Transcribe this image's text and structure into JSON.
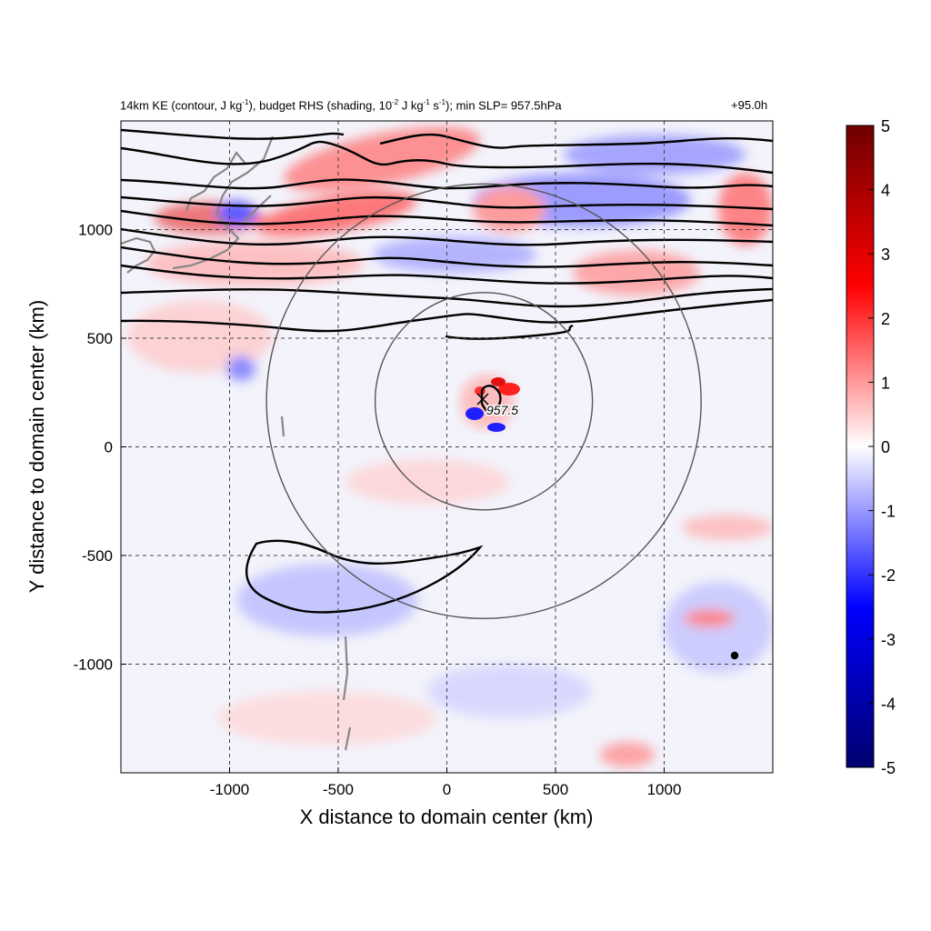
{
  "chart_data": {
    "type": "heatmap",
    "title_parts": {
      "a": "14km KE (contour, J kg",
      "a_sup": "-1",
      "b": "), budget RHS (shading, 10",
      "b_sup": "-2",
      "c": " J kg",
      "c_sup": "-1",
      "d": " s",
      "d_sup": "-1",
      "e": "); min SLP= 957.5hPa"
    },
    "time_label": "+95.0h",
    "xlabel": "X distance to domain center (km)",
    "ylabel": "Y distance to domain center (km)",
    "xlim": [
      -1500,
      1500
    ],
    "ylim": [
      -1500,
      1500
    ],
    "xticks": [
      -1000,
      -500,
      0,
      500,
      1000
    ],
    "yticks": [
      -1000,
      -500,
      0,
      500,
      1000
    ],
    "grid": "dashed",
    "colorbar": {
      "range": [
        -5,
        5
      ],
      "ticks": [
        5,
        4,
        3,
        2,
        1,
        0,
        -1,
        -2,
        -3,
        -4,
        -5
      ],
      "colors": [
        "#00006e",
        "#0000ff",
        "#ffffff",
        "#ff0000",
        "#6e0000"
      ]
    },
    "storm_center": {
      "x": 170,
      "y": 210,
      "label": "957.5"
    },
    "range_rings_km": [
      500,
      1000
    ]
  }
}
